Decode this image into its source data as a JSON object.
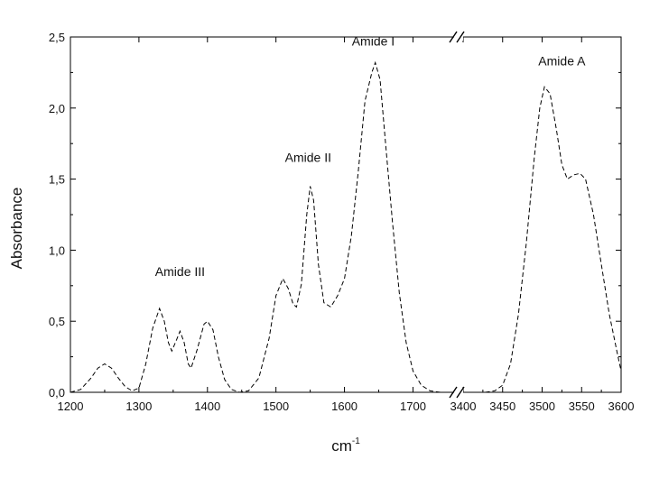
{
  "chart_data": {
    "type": "line",
    "xlabel": "cm",
    "xlabel_sup": "-1",
    "ylabel": "Absorbance",
    "ylim": [
      0,
      2.5
    ],
    "y_ticks": [
      0,
      0.5,
      1.0,
      1.5,
      2.0,
      2.5
    ],
    "y_tick_labels": [
      "0,0",
      "0,5",
      "1,0",
      "1,5",
      "2,0",
      "2,5"
    ],
    "x_break": true,
    "x_segments": [
      {
        "range": [
          1200,
          1760
        ],
        "ticks": [
          1200,
          1300,
          1400,
          1500,
          1600,
          1700
        ],
        "tick_labels": [
          "1200",
          "1300",
          "1400",
          "1500",
          "1600",
          "1700"
        ]
      },
      {
        "range": [
          3400,
          3600
        ],
        "ticks": [
          3400,
          3450,
          3500,
          3550,
          3600
        ],
        "tick_labels": [
          "3400",
          "3450",
          "3500",
          "3550",
          "3600"
        ]
      }
    ],
    "line_style": "dashed",
    "grid": false,
    "series": [
      {
        "segment": 0,
        "points": [
          [
            1200,
            0.0
          ],
          [
            1215,
            0.02
          ],
          [
            1230,
            0.1
          ],
          [
            1240,
            0.17
          ],
          [
            1250,
            0.2
          ],
          [
            1260,
            0.17
          ],
          [
            1270,
            0.1
          ],
          [
            1280,
            0.04
          ],
          [
            1290,
            0.01
          ],
          [
            1300,
            0.03
          ],
          [
            1310,
            0.2
          ],
          [
            1320,
            0.45
          ],
          [
            1330,
            0.59
          ],
          [
            1337,
            0.5
          ],
          [
            1343,
            0.35
          ],
          [
            1348,
            0.29
          ],
          [
            1355,
            0.37
          ],
          [
            1360,
            0.43
          ],
          [
            1366,
            0.35
          ],
          [
            1372,
            0.2
          ],
          [
            1376,
            0.17
          ],
          [
            1385,
            0.3
          ],
          [
            1395,
            0.48
          ],
          [
            1400,
            0.5
          ],
          [
            1408,
            0.44
          ],
          [
            1416,
            0.25
          ],
          [
            1425,
            0.09
          ],
          [
            1435,
            0.02
          ],
          [
            1447,
            0.0
          ],
          [
            1460,
            0.01
          ],
          [
            1475,
            0.1
          ],
          [
            1490,
            0.38
          ],
          [
            1500,
            0.68
          ],
          [
            1510,
            0.8
          ],
          [
            1518,
            0.73
          ],
          [
            1525,
            0.62
          ],
          [
            1530,
            0.6
          ],
          [
            1537,
            0.76
          ],
          [
            1545,
            1.25
          ],
          [
            1550,
            1.45
          ],
          [
            1555,
            1.35
          ],
          [
            1562,
            0.9
          ],
          [
            1570,
            0.63
          ],
          [
            1580,
            0.6
          ],
          [
            1590,
            0.68
          ],
          [
            1600,
            0.8
          ],
          [
            1610,
            1.1
          ],
          [
            1620,
            1.55
          ],
          [
            1630,
            2.05
          ],
          [
            1640,
            2.25
          ],
          [
            1645,
            2.32
          ],
          [
            1652,
            2.2
          ],
          [
            1660,
            1.75
          ],
          [
            1670,
            1.2
          ],
          [
            1680,
            0.7
          ],
          [
            1690,
            0.35
          ],
          [
            1700,
            0.15
          ],
          [
            1712,
            0.05
          ],
          [
            1725,
            0.01
          ],
          [
            1740,
            0.0
          ]
        ]
      },
      {
        "segment": 1,
        "points": [
          [
            3428,
            0.0
          ],
          [
            3440,
            0.01
          ],
          [
            3450,
            0.05
          ],
          [
            3460,
            0.2
          ],
          [
            3470,
            0.55
          ],
          [
            3480,
            1.05
          ],
          [
            3490,
            1.65
          ],
          [
            3497,
            2.0
          ],
          [
            3503,
            2.15
          ],
          [
            3510,
            2.1
          ],
          [
            3518,
            1.85
          ],
          [
            3525,
            1.6
          ],
          [
            3532,
            1.5
          ],
          [
            3540,
            1.53
          ],
          [
            3548,
            1.54
          ],
          [
            3555,
            1.5
          ],
          [
            3565,
            1.25
          ],
          [
            3575,
            0.9
          ],
          [
            3585,
            0.55
          ],
          [
            3595,
            0.28
          ],
          [
            3600,
            0.15
          ]
        ]
      }
    ],
    "annotations": [
      {
        "text": "Amide III",
        "x": 1360,
        "y": 0.82,
        "segment": 0
      },
      {
        "text": "Amide II",
        "x": 1547,
        "y": 1.62,
        "segment": 0
      },
      {
        "text": "Amide I",
        "x": 1642,
        "y": 2.44,
        "segment": 0
      },
      {
        "text": "Amide A",
        "x": 3525,
        "y": 2.3,
        "segment": 1
      }
    ]
  }
}
